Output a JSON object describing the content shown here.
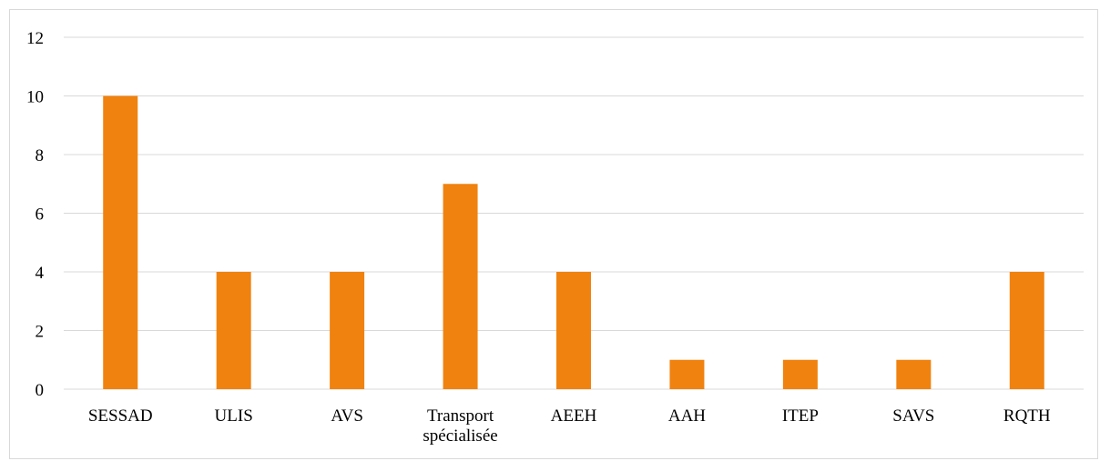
{
  "chart_data": {
    "type": "bar",
    "categories": [
      [
        "SESSAD"
      ],
      [
        "ULIS"
      ],
      [
        "AVS"
      ],
      [
        "Transport",
        "spécialisée"
      ],
      [
        "AEEH"
      ],
      [
        "AAH"
      ],
      [
        "ITEP"
      ],
      [
        "SAVS"
      ],
      [
        "RQTH"
      ]
    ],
    "values": [
      10,
      4,
      4,
      7,
      4,
      1,
      1,
      1,
      4
    ],
    "title": "",
    "xlabel": "",
    "ylabel": "",
    "ylim": [
      0,
      12
    ],
    "yticks": [
      "0",
      "2",
      "4",
      "6",
      "8",
      "10",
      "12"
    ],
    "grid": true,
    "legend": "none",
    "bar_color": "#f0820f",
    "grid_color": "#d9d9d9"
  }
}
